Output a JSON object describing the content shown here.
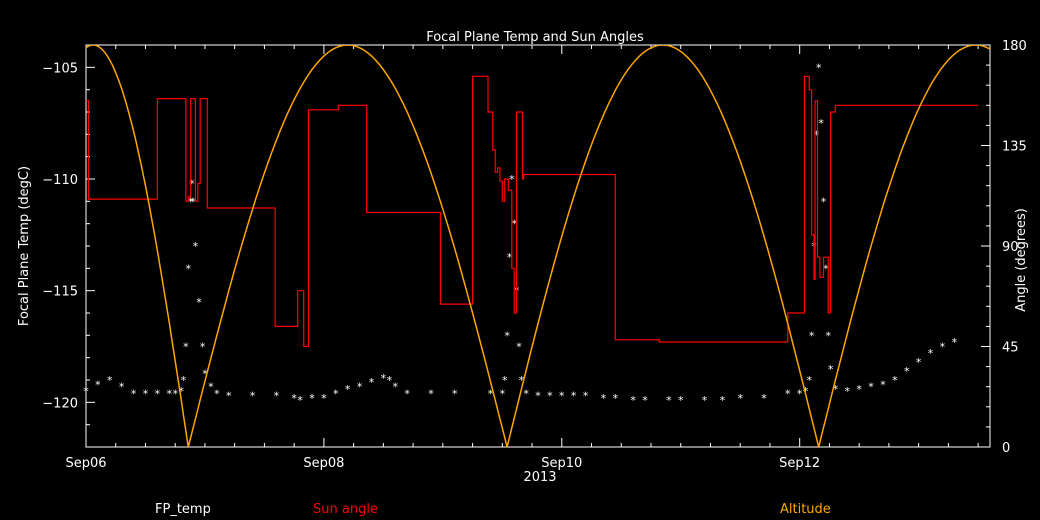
{
  "chart_data": {
    "type": "line",
    "title": "Focal Plane Temp and Sun Angles",
    "xlabel": "2013",
    "ylabel_left": "Focal Plane Temp (degC)",
    "ylabel_right": "Angle (degrees)",
    "x_unit": "days since Sep06 2013 00:00",
    "xlim": [
      0,
      7.6
    ],
    "ylim_left": [
      -122,
      -104
    ],
    "ylim_right": [
      0,
      180
    ],
    "x_ticks": [
      {
        "x": 0,
        "label": "Sep06"
      },
      {
        "x": 2,
        "label": "Sep08"
      },
      {
        "x": 4,
        "label": "Sep10"
      },
      {
        "x": 6,
        "label": "Sep12"
      }
    ],
    "y_ticks_left": [
      -105,
      -110,
      -115,
      -120
    ],
    "y_ticks_right": [
      0,
      45,
      90,
      135,
      180
    ],
    "legend": [
      {
        "label": "FP_temp",
        "color": "#ffffff"
      },
      {
        "label": "Sun angle",
        "color": "#ff0000"
      },
      {
        "label": "Altitude",
        "color": "#ffa500"
      }
    ],
    "series": [
      {
        "name": "FP_temp",
        "axis": "left",
        "style": "markers",
        "color": "#ffffff",
        "points": [
          [
            0.0,
            -119.5
          ],
          [
            0.1,
            -119.2
          ],
          [
            0.2,
            -119.0
          ],
          [
            0.3,
            -119.3
          ],
          [
            0.4,
            -119.6
          ],
          [
            0.5,
            -119.6
          ],
          [
            0.6,
            -119.6
          ],
          [
            0.7,
            -119.6
          ],
          [
            0.75,
            -119.6
          ],
          [
            0.8,
            -119.5
          ],
          [
            0.82,
            -119.0
          ],
          [
            0.84,
            -117.5
          ],
          [
            0.86,
            -114.0
          ],
          [
            0.88,
            -111.0
          ],
          [
            0.89,
            -110.2
          ],
          [
            0.9,
            -111.0
          ],
          [
            0.92,
            -113.0
          ],
          [
            0.95,
            -115.5
          ],
          [
            0.98,
            -117.5
          ],
          [
            1.0,
            -118.7
          ],
          [
            1.05,
            -119.3
          ],
          [
            1.1,
            -119.6
          ],
          [
            1.2,
            -119.7
          ],
          [
            1.4,
            -119.7
          ],
          [
            1.6,
            -119.7
          ],
          [
            1.75,
            -119.8
          ],
          [
            1.8,
            -119.9
          ],
          [
            1.9,
            -119.8
          ],
          [
            2.0,
            -119.8
          ],
          [
            2.1,
            -119.6
          ],
          [
            2.2,
            -119.4
          ],
          [
            2.3,
            -119.3
          ],
          [
            2.4,
            -119.1
          ],
          [
            2.5,
            -118.9
          ],
          [
            2.55,
            -119.0
          ],
          [
            2.6,
            -119.3
          ],
          [
            2.7,
            -119.6
          ],
          [
            2.9,
            -119.6
          ],
          [
            3.1,
            -119.6
          ],
          [
            3.4,
            -119.6
          ],
          [
            3.5,
            -119.6
          ],
          [
            3.52,
            -119.0
          ],
          [
            3.54,
            -117.0
          ],
          [
            3.56,
            -113.5
          ],
          [
            3.58,
            -110.0
          ],
          [
            3.6,
            -112.0
          ],
          [
            3.62,
            -115.0
          ],
          [
            3.64,
            -117.5
          ],
          [
            3.66,
            -119.0
          ],
          [
            3.7,
            -119.6
          ],
          [
            3.8,
            -119.7
          ],
          [
            3.9,
            -119.7
          ],
          [
            4.0,
            -119.7
          ],
          [
            4.1,
            -119.7
          ],
          [
            4.2,
            -119.7
          ],
          [
            4.35,
            -119.8
          ],
          [
            4.45,
            -119.8
          ],
          [
            4.6,
            -119.9
          ],
          [
            4.7,
            -119.9
          ],
          [
            4.9,
            -119.9
          ],
          [
            5.0,
            -119.9
          ],
          [
            5.2,
            -119.9
          ],
          [
            5.35,
            -119.9
          ],
          [
            5.5,
            -119.8
          ],
          [
            5.7,
            -119.8
          ],
          [
            5.9,
            -119.6
          ],
          [
            6.0,
            -119.6
          ],
          [
            6.05,
            -119.5
          ],
          [
            6.08,
            -119.0
          ],
          [
            6.1,
            -117.0
          ],
          [
            6.12,
            -113.0
          ],
          [
            6.14,
            -108.0
          ],
          [
            6.16,
            -105.0
          ],
          [
            6.18,
            -107.5
          ],
          [
            6.2,
            -111.0
          ],
          [
            6.22,
            -114.0
          ],
          [
            6.24,
            -117.0
          ],
          [
            6.26,
            -118.5
          ],
          [
            6.3,
            -119.4
          ],
          [
            6.4,
            -119.5
          ],
          [
            6.5,
            -119.4
          ],
          [
            6.6,
            -119.3
          ],
          [
            6.7,
            -119.2
          ],
          [
            6.8,
            -119.0
          ],
          [
            6.9,
            -118.6
          ],
          [
            7.0,
            -118.2
          ],
          [
            7.1,
            -117.8
          ],
          [
            7.2,
            -117.5
          ],
          [
            7.3,
            -117.3
          ]
        ]
      },
      {
        "name": "Sun angle",
        "axis": "right",
        "style": "line",
        "color": "#ff0000",
        "points": [
          [
            0.0,
            155
          ],
          [
            0.02,
            155
          ],
          [
            0.02,
            111
          ],
          [
            0.6,
            111
          ],
          [
            0.6,
            156
          ],
          [
            0.84,
            156
          ],
          [
            0.84,
            110
          ],
          [
            0.86,
            110
          ],
          [
            0.86,
            112
          ],
          [
            0.88,
            112
          ],
          [
            0.88,
            156
          ],
          [
            0.92,
            156
          ],
          [
            0.92,
            110
          ],
          [
            0.94,
            110
          ],
          [
            0.94,
            118
          ],
          [
            0.96,
            118
          ],
          [
            0.96,
            156
          ],
          [
            1.02,
            156
          ],
          [
            1.02,
            107
          ],
          [
            1.59,
            107
          ],
          [
            1.59,
            54
          ],
          [
            1.78,
            54
          ],
          [
            1.78,
            70
          ],
          [
            1.83,
            70
          ],
          [
            1.83,
            45
          ],
          [
            1.87,
            45
          ],
          [
            1.87,
            151
          ],
          [
            2.12,
            151
          ],
          [
            2.12,
            153
          ],
          [
            2.36,
            153
          ],
          [
            2.36,
            105
          ],
          [
            2.98,
            105
          ],
          [
            2.98,
            64
          ],
          [
            3.25,
            64
          ],
          [
            3.25,
            166
          ],
          [
            3.38,
            166
          ],
          [
            3.38,
            150
          ],
          [
            3.42,
            150
          ],
          [
            3.42,
            133
          ],
          [
            3.44,
            133
          ],
          [
            3.44,
            123
          ],
          [
            3.46,
            123
          ],
          [
            3.46,
            125
          ],
          [
            3.48,
            125
          ],
          [
            3.48,
            119
          ],
          [
            3.5,
            119
          ],
          [
            3.5,
            110
          ],
          [
            3.52,
            110
          ],
          [
            3.52,
            120
          ],
          [
            3.55,
            120
          ],
          [
            3.55,
            115
          ],
          [
            3.58,
            115
          ],
          [
            3.58,
            80
          ],
          [
            3.6,
            80
          ],
          [
            3.6,
            60
          ],
          [
            3.62,
            60
          ],
          [
            3.62,
            150
          ],
          [
            3.67,
            150
          ],
          [
            3.67,
            120
          ],
          [
            3.68,
            120
          ],
          [
            3.68,
            122
          ],
          [
            4.45,
            122
          ],
          [
            4.45,
            48
          ],
          [
            4.82,
            48
          ],
          [
            4.82,
            47
          ],
          [
            5.9,
            47
          ],
          [
            5.9,
            60
          ],
          [
            6.04,
            60
          ],
          [
            6.04,
            166
          ],
          [
            6.08,
            166
          ],
          [
            6.08,
            160
          ],
          [
            6.1,
            160
          ],
          [
            6.1,
            95
          ],
          [
            6.12,
            95
          ],
          [
            6.12,
            75
          ],
          [
            6.13,
            75
          ],
          [
            6.13,
            155
          ],
          [
            6.15,
            155
          ],
          [
            6.15,
            85
          ],
          [
            6.17,
            85
          ],
          [
            6.17,
            76
          ],
          [
            6.2,
            76
          ],
          [
            6.2,
            85
          ],
          [
            6.24,
            85
          ],
          [
            6.24,
            60
          ],
          [
            6.26,
            60
          ],
          [
            6.26,
            150
          ],
          [
            6.3,
            150
          ],
          [
            6.3,
            153
          ],
          [
            7.5,
            153
          ]
        ]
      },
      {
        "name": "Altitude",
        "axis": "right",
        "style": "curve",
        "color": "#ffa500",
        "arcs": [
          [
            -0.74,
            0.86
          ],
          [
            0.86,
            3.54
          ],
          [
            3.54,
            6.16
          ],
          [
            6.16,
            8.8
          ]
        ]
      }
    ]
  }
}
